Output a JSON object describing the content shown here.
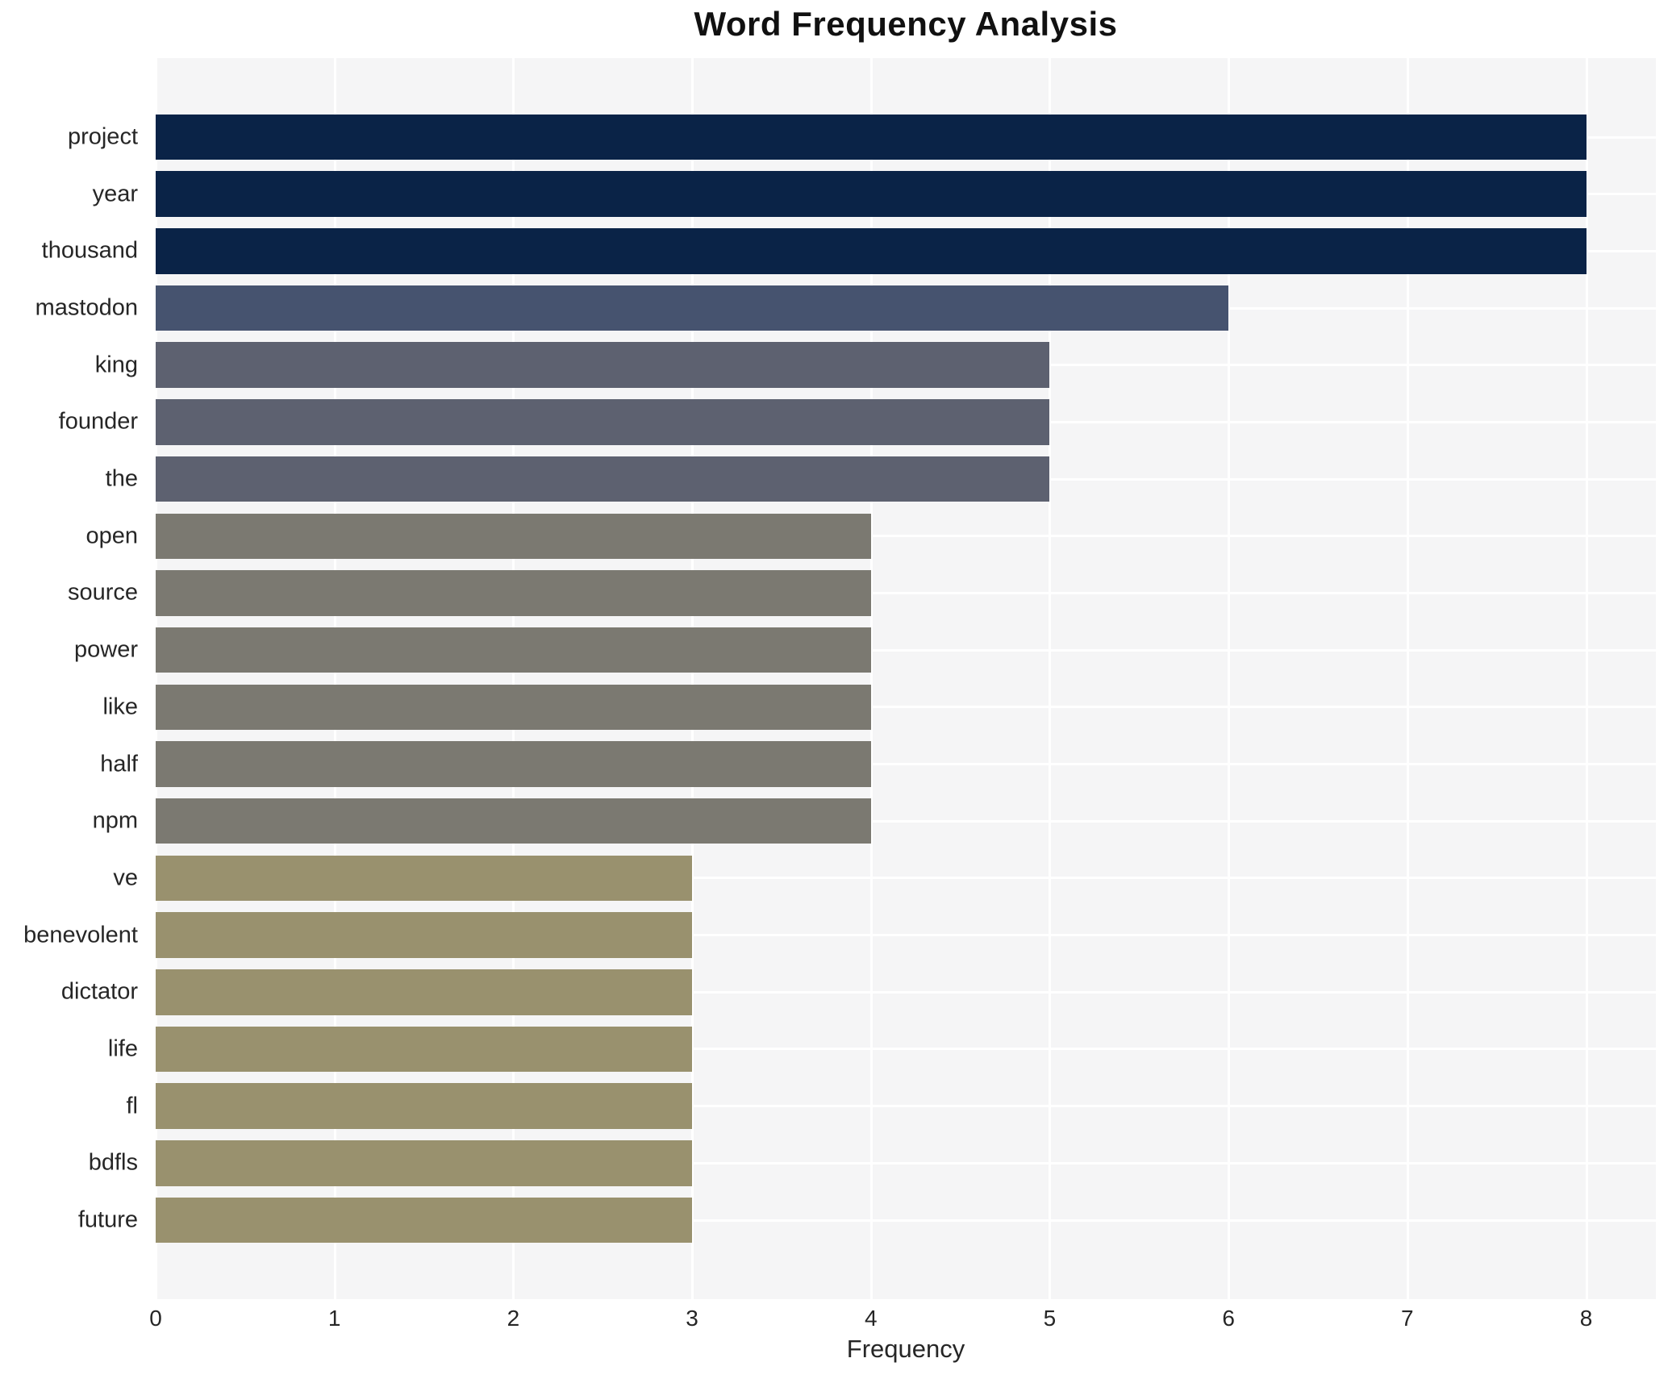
{
  "chart_data": {
    "type": "bar",
    "orientation": "horizontal",
    "title": "Word Frequency Analysis",
    "xlabel": "Frequency",
    "ylabel": "",
    "categories": [
      "project",
      "year",
      "thousand",
      "mastodon",
      "king",
      "founder",
      "the",
      "open",
      "source",
      "power",
      "like",
      "half",
      "npm",
      "ve",
      "benevolent",
      "dictator",
      "life",
      "fl",
      "bdfls",
      "future"
    ],
    "values": [
      8,
      8,
      8,
      6,
      5,
      5,
      5,
      4,
      4,
      4,
      4,
      4,
      4,
      3,
      3,
      3,
      3,
      3,
      3,
      3
    ],
    "bar_colors": [
      "#0a2347",
      "#0a2347",
      "#0a2347",
      "#46536f",
      "#5d6170",
      "#5d6170",
      "#5d6170",
      "#7b7971",
      "#7b7971",
      "#7b7971",
      "#7b7971",
      "#7b7971",
      "#7b7971",
      "#99916e",
      "#99916e",
      "#99916e",
      "#99916e",
      "#99916e",
      "#99916e",
      "#99916e"
    ],
    "xticks": [
      0,
      1,
      2,
      3,
      4,
      5,
      6,
      7,
      8
    ],
    "xlim": [
      0,
      8.39
    ],
    "grid": true,
    "legend": "none",
    "plot_bg_color": "#f5f5f6",
    "grid_color": "#ffffff",
    "text_color": "#262626",
    "title_color": "#111111"
  }
}
